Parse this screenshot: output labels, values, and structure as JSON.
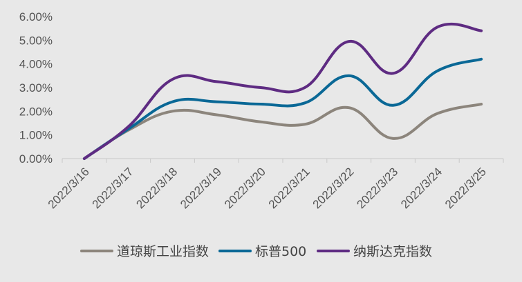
{
  "chart_data": {
    "type": "line",
    "categories": [
      "2022/3/16",
      "2022/3/17",
      "2022/3/18",
      "2022/3/19",
      "2022/3/20",
      "2022/3/21",
      "2022/3/22",
      "2022/3/23",
      "2022/3/24",
      "2022/3/25"
    ],
    "y_ticks": [
      "0.00%",
      "1.00%",
      "2.00%",
      "3.00%",
      "4.00%",
      "5.00%",
      "6.00%"
    ],
    "ylim": [
      0,
      6
    ],
    "y_unit": "%",
    "grid": false,
    "legend_position": "bottom",
    "series": [
      {
        "name": "道琼斯工业指数",
        "color": "#8c857c",
        "values": [
          0.0,
          1.2,
          2.0,
          1.85,
          1.55,
          1.45,
          2.15,
          0.85,
          1.9,
          2.3
        ]
      },
      {
        "name": "标普500",
        "color": "#0a6896",
        "values": [
          0.0,
          1.25,
          2.4,
          2.4,
          2.3,
          2.35,
          3.5,
          2.25,
          3.7,
          4.2
        ]
      },
      {
        "name": "纳斯达克指数",
        "color": "#5e2b82",
        "values": [
          0.0,
          1.35,
          3.35,
          3.25,
          3.0,
          3.0,
          4.95,
          3.6,
          5.55,
          5.4
        ]
      }
    ]
  }
}
